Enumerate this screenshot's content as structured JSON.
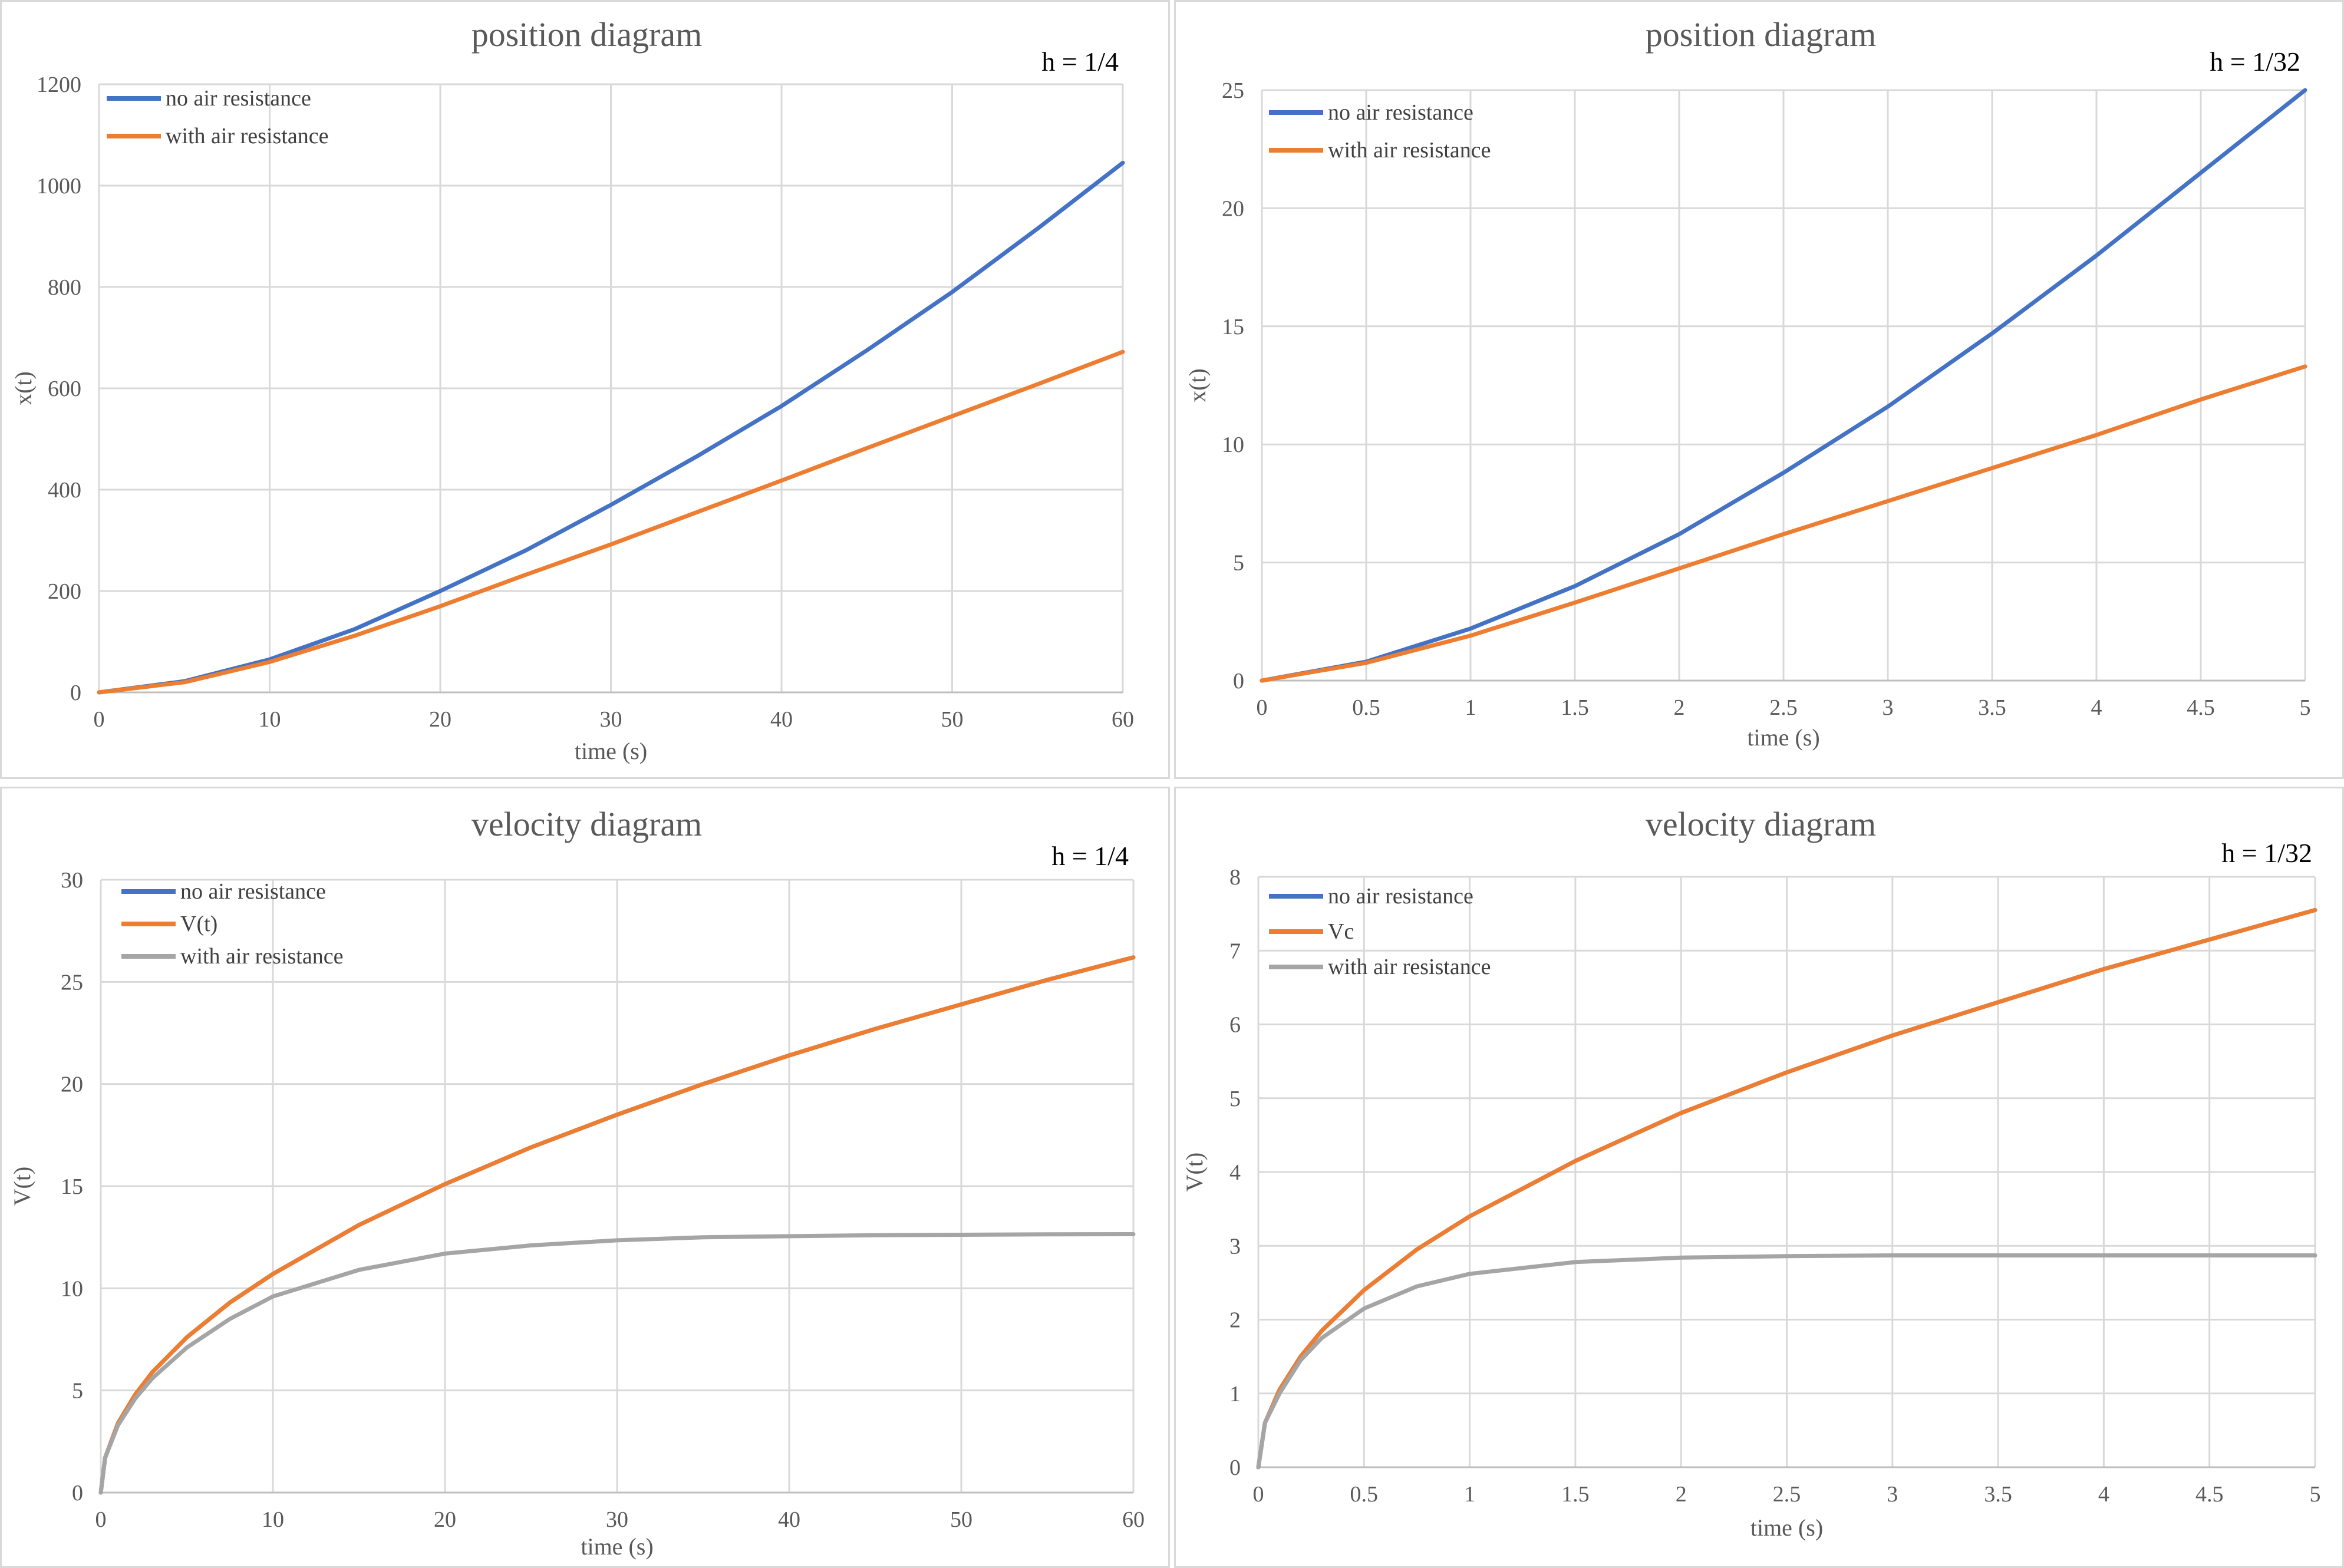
{
  "chart_data": [
    {
      "type": "line",
      "title": "position diagram",
      "annotation": "h = 1/4",
      "xlabel": "time (s)",
      "ylabel": "x(t)",
      "xlim": [
        0,
        60
      ],
      "ylim": [
        0,
        1200
      ],
      "xticks": [
        "0",
        "10",
        "20",
        "30",
        "40",
        "50",
        "60"
      ],
      "yticks": [
        "0",
        "200",
        "400",
        "600",
        "800",
        "1000",
        "1200"
      ],
      "grid": true,
      "legend_position": "top-left",
      "series": [
        {
          "name": "no air resistance",
          "color": "#4472C4",
          "x": [
            0,
            5,
            10,
            15,
            20,
            25,
            30,
            35,
            40,
            45,
            50,
            55,
            60
          ],
          "y": [
            0,
            22,
            65,
            125,
            200,
            280,
            370,
            465,
            565,
            675,
            790,
            915,
            1045
          ]
        },
        {
          "name": "with air resistance",
          "color": "#ED7D31",
          "x": [
            0,
            5,
            10,
            15,
            20,
            25,
            30,
            35,
            40,
            45,
            50,
            55,
            60
          ],
          "y": [
            0,
            20,
            60,
            112,
            170,
            232,
            292,
            355,
            418,
            482,
            545,
            608,
            672
          ]
        }
      ]
    },
    {
      "type": "line",
      "title": "position diagram",
      "annotation": "h = 1/32",
      "xlabel": "time (s)",
      "ylabel": "x(t)",
      "xlim": [
        0,
        5
      ],
      "ylim": [
        0,
        25
      ],
      "xticks": [
        "0",
        "0.5",
        "1",
        "1.5",
        "2",
        "2.5",
        "3",
        "3.5",
        "4",
        "4.5",
        "5"
      ],
      "yticks": [
        "0",
        "5",
        "10",
        "15",
        "20",
        "25"
      ],
      "grid": true,
      "legend_position": "top-left",
      "series": [
        {
          "name": "no air resistance",
          "color": "#4472C4",
          "x": [
            0,
            0.5,
            1,
            1.5,
            2,
            2.5,
            3,
            3.5,
            4,
            4.5,
            5
          ],
          "y": [
            0,
            0.8,
            2.2,
            4.0,
            6.2,
            8.8,
            11.6,
            14.7,
            18.0,
            21.5,
            25.0
          ]
        },
        {
          "name": "with air resistance",
          "color": "#ED7D31",
          "x": [
            0,
            0.5,
            1,
            1.5,
            2,
            2.5,
            3,
            3.5,
            4,
            4.5,
            5
          ],
          "y": [
            0,
            0.75,
            1.9,
            3.3,
            4.75,
            6.2,
            7.6,
            9.0,
            10.4,
            11.9,
            13.3
          ]
        }
      ]
    },
    {
      "type": "line",
      "title": "velocity diagram",
      "annotation": "h = 1/4",
      "xlabel": "time (s)",
      "ylabel": "V(t)",
      "xlim": [
        0,
        60
      ],
      "ylim": [
        0,
        30
      ],
      "xticks": [
        "0",
        "10",
        "20",
        "30",
        "40",
        "50",
        "60"
      ],
      "yticks": [
        "0",
        "5",
        "10",
        "15",
        "20",
        "25",
        "30"
      ],
      "grid": true,
      "legend_position": "top-left",
      "series": [
        {
          "name": "no air resistance",
          "color": "#4472C4",
          "x": [
            0,
            0.25,
            1,
            2,
            3,
            5,
            7.5,
            10,
            15,
            20,
            25,
            30,
            35,
            40,
            45,
            50,
            55,
            60
          ],
          "y": [
            0,
            1.7,
            3.4,
            4.8,
            5.9,
            7.6,
            9.3,
            10.7,
            13.1,
            15.1,
            16.9,
            18.5,
            20.0,
            21.4,
            22.7,
            23.9,
            25.1,
            26.2
          ]
        },
        {
          "name": "V(t)",
          "color": "#ED7D31",
          "x": [
            0,
            0.25,
            1,
            2,
            3,
            5,
            7.5,
            10,
            15,
            20,
            25,
            30,
            35,
            40,
            45,
            50,
            55,
            60
          ],
          "y": [
            0,
            1.7,
            3.4,
            4.8,
            5.9,
            7.6,
            9.3,
            10.7,
            13.1,
            15.1,
            16.9,
            18.5,
            20.0,
            21.4,
            22.7,
            23.9,
            25.1,
            26.2
          ]
        },
        {
          "name": "with air resistance",
          "color": "#A5A5A5",
          "x": [
            0,
            0.25,
            1,
            2,
            3,
            5,
            7.5,
            10,
            15,
            20,
            25,
            30,
            35,
            40,
            45,
            50,
            55,
            60
          ],
          "y": [
            0,
            1.7,
            3.3,
            4.6,
            5.6,
            7.1,
            8.5,
            9.6,
            10.9,
            11.7,
            12.1,
            12.35,
            12.5,
            12.55,
            12.6,
            12.62,
            12.64,
            12.65
          ]
        }
      ]
    },
    {
      "type": "line",
      "title": "velocity diagram",
      "annotation": "h = 1/32",
      "xlabel": "time (s)",
      "ylabel": "V(t)",
      "xlim": [
        0,
        5
      ],
      "ylim": [
        0,
        8
      ],
      "xticks": [
        "0",
        "0.5",
        "1",
        "1.5",
        "2",
        "2.5",
        "3",
        "3.5",
        "4",
        "4.5",
        "5"
      ],
      "yticks": [
        "0",
        "1",
        "2",
        "3",
        "4",
        "5",
        "6",
        "7",
        "8"
      ],
      "grid": true,
      "legend_position": "top-left",
      "series": [
        {
          "name": "no air resistance",
          "color": "#4472C4",
          "x": [
            0,
            0.03125,
            0.1,
            0.2,
            0.3,
            0.5,
            0.75,
            1,
            1.5,
            2,
            2.5,
            3,
            3.5,
            4,
            4.5,
            5
          ],
          "y": [
            0,
            0.6,
            1.05,
            1.5,
            1.85,
            2.4,
            2.95,
            3.4,
            4.15,
            4.8,
            5.35,
            5.85,
            6.3,
            6.75,
            7.15,
            7.55
          ]
        },
        {
          "name": "Vc",
          "color": "#ED7D31",
          "x": [
            0,
            0.03125,
            0.1,
            0.2,
            0.3,
            0.5,
            0.75,
            1,
            1.5,
            2,
            2.5,
            3,
            3.5,
            4,
            4.5,
            5
          ],
          "y": [
            0,
            0.6,
            1.05,
            1.5,
            1.85,
            2.4,
            2.95,
            3.4,
            4.15,
            4.8,
            5.35,
            5.85,
            6.3,
            6.75,
            7.15,
            7.55
          ]
        },
        {
          "name": "with air resistance",
          "color": "#A5A5A5",
          "x": [
            0,
            0.03125,
            0.1,
            0.2,
            0.3,
            0.5,
            0.75,
            1,
            1.5,
            2,
            2.5,
            3,
            3.5,
            4,
            4.5,
            5
          ],
          "y": [
            0,
            0.6,
            1.0,
            1.45,
            1.75,
            2.15,
            2.45,
            2.62,
            2.78,
            2.84,
            2.86,
            2.87,
            2.87,
            2.87,
            2.87,
            2.87
          ]
        }
      ]
    }
  ]
}
